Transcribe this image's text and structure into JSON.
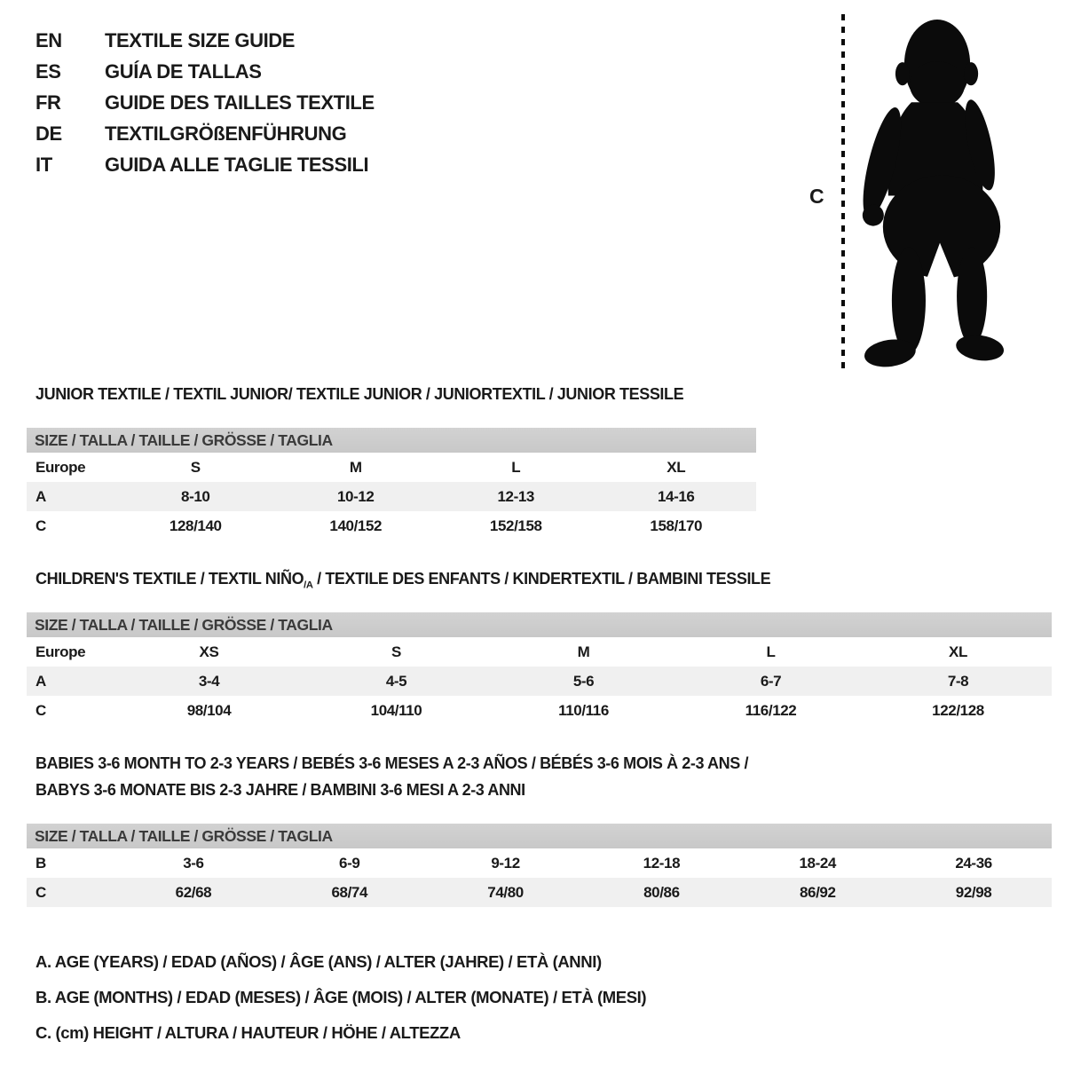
{
  "page": {
    "background": "#ffffff",
    "text_color": "#1a1a1a"
  },
  "colors": {
    "table_header_bg": "#c8c8c8",
    "row_alt_bg": "#f0f0f0",
    "silhouette": "#0b0b0b"
  },
  "header": {
    "languages": [
      {
        "code": "EN",
        "title": "TEXTILE SIZE GUIDE"
      },
      {
        "code": "ES",
        "title": "GUÍA DE TALLAS"
      },
      {
        "code": "FR",
        "title": "GUIDE DES TAILLES TEXTILE"
      },
      {
        "code": "DE",
        "title": "TEXTILGRÖßENFÜHRUNG"
      },
      {
        "code": "IT",
        "title": "GUIDA ALLE TAGLIE TESSILI"
      }
    ]
  },
  "figure": {
    "measure_label": "C",
    "image_description": "baby-silhouette"
  },
  "sections": {
    "junior": {
      "title": "JUNIOR TEXTILE / TEXTIL JUNIOR/ TEXTILE JUNIOR / JUNIORTEXTIL / JUNIOR TESSILE",
      "table": {
        "header": "SIZE / TALLA / TAILLE / GRÖSSE / TAGLIA",
        "rows": [
          {
            "label": "Europe",
            "values": [
              "S",
              "M",
              "L",
              "XL"
            ],
            "shaded": false
          },
          {
            "label": "A",
            "values": [
              "8-10",
              "10-12",
              "12-13",
              "14-16"
            ],
            "shaded": true
          },
          {
            "label": "C",
            "values": [
              "128/140",
              "140/152",
              "152/158",
              "158/170"
            ],
            "shaded": false
          }
        ]
      }
    },
    "children": {
      "title_prefix": "CHILDREN'S TEXTILE / TEXTIL NIÑO",
      "title_sub": "/A",
      "title_suffix": " / TEXTILE DES ENFANTS / KINDERTEXTIL / BAMBINI TESSILE",
      "table": {
        "header": "SIZE / TALLA / TAILLE / GRÖSSE / TAGLIA",
        "rows": [
          {
            "label": "Europe",
            "values": [
              "XS",
              "S",
              "M",
              "L",
              "XL"
            ],
            "shaded": false
          },
          {
            "label": "A",
            "values": [
              "3-4",
              "4-5",
              "5-6",
              "6-7",
              "7-8"
            ],
            "shaded": true
          },
          {
            "label": "C",
            "values": [
              "98/104",
              "104/110",
              "110/116",
              "116/122",
              "122/128"
            ],
            "shaded": false
          }
        ]
      }
    },
    "babies": {
      "title_line1": "BABIES 3-6 MONTH TO 2-3 YEARS / BEBÉS 3-6 MESES A 2-3 AÑOS / BÉBÉS 3-6 MOIS À 2-3 ANS /",
      "title_line2": "BABYS 3-6 MONATE BIS 2-3 JAHRE / BAMBINI 3-6 MESI A 2-3 ANNI",
      "table": {
        "header": "SIZE / TALLA / TAILLE / GRÖSSE / TAGLIA",
        "rows": [
          {
            "label": "B",
            "values": [
              "3-6",
              "6-9",
              "9-12",
              "12-18",
              "18-24",
              "24-36"
            ],
            "shaded": false
          },
          {
            "label": "C",
            "values": [
              "62/68",
              "68/74",
              "74/80",
              "80/86",
              "86/92",
              "92/98"
            ],
            "shaded": true
          }
        ]
      }
    }
  },
  "legend": {
    "items": [
      "A. AGE (YEARS) / EDAD (AÑOS) / ÂGE (ANS) / ALTER (JAHRE) / ETÀ (ANNI)",
      "B. AGE (MONTHS) / EDAD (MESES) / ÂGE (MOIS) / ALTER (MONATE) / ETÀ (MESI)",
      "C. (cm) HEIGHT / ALTURA / HAUTEUR / HÖHE / ALTEZZA"
    ]
  }
}
